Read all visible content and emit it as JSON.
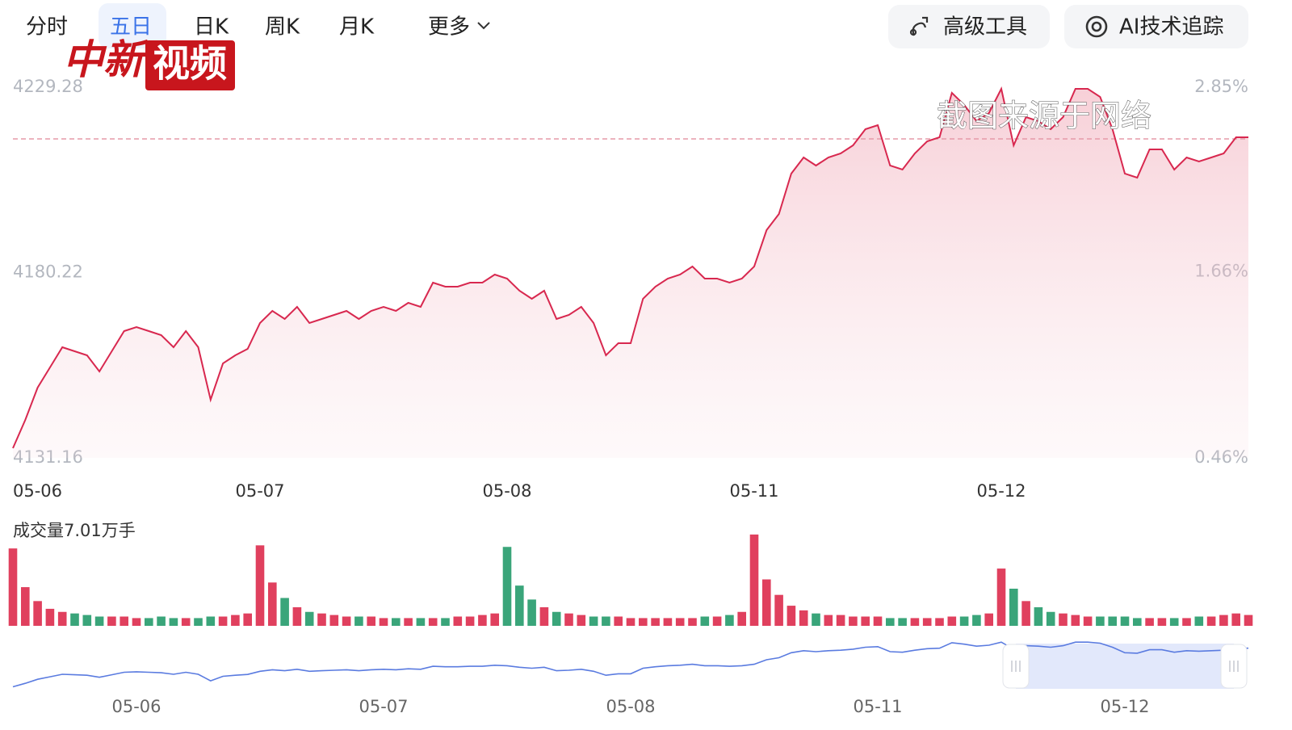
{
  "tabs": [
    "分时",
    "五日",
    "日K",
    "周K",
    "月K",
    "更多"
  ],
  "active_tab": 1,
  "buttons": [
    "高级工具",
    "AI技术追踪"
  ],
  "watermark": {
    "logo_left": "中新",
    "logo_box": "视频",
    "source_note": "截图来源于网络"
  },
  "chart_data": [
    {
      "type": "line",
      "categories": [
        "05-06",
        null,
        null,
        null,
        null,
        null,
        null,
        null,
        null,
        null,
        null,
        null,
        null,
        null,
        null,
        null,
        null,
        null,
        null,
        null,
        "05-07",
        null,
        null,
        null,
        null,
        null,
        null,
        null,
        null,
        null,
        null,
        null,
        null,
        null,
        null,
        null,
        null,
        null,
        null,
        null,
        "05-08",
        null,
        null,
        null,
        null,
        null,
        null,
        null,
        null,
        null,
        null,
        null,
        null,
        null,
        null,
        null,
        null,
        null,
        null,
        null,
        "05-11",
        null,
        null,
        null,
        null,
        null,
        null,
        null,
        null,
        null,
        null,
        null,
        null,
        null,
        null,
        null,
        null,
        null,
        null,
        null,
        "05-12",
        null,
        null,
        null,
        null,
        null,
        null,
        null,
        null,
        null,
        null,
        null,
        null,
        null,
        null,
        null,
        null,
        null,
        null,
        null,
        null
      ],
      "series": [
        {
          "name": null,
          "color": "#d8284f",
          "values": [
            4133.73,
            4141.21,
            4149.76,
            4155.1,
            4160.45,
            4159.38,
            4158.31,
            4154.03,
            4159.38,
            4164.72,
            4165.79,
            4164.72,
            4163.65,
            4160.45,
            4164.72,
            4160.45,
            4146.55,
            4156.17,
            4158.31,
            4160.02,
            4166.86,
            4170.07,
            4167.93,
            4171.13,
            4166.86,
            4167.93,
            4169.0,
            4170.07,
            4167.93,
            4170.07,
            4171.13,
            4170.07,
            4172.2,
            4171.13,
            4177.55,
            4176.48,
            4176.48,
            4177.55,
            4177.55,
            4179.69,
            4178.62,
            4175.41,
            4173.27,
            4175.41,
            4167.93,
            4169.0,
            4171.13,
            4166.86,
            4158.31,
            4161.51,
            4161.51,
            4173.27,
            4176.48,
            4178.62,
            4179.69,
            4181.82,
            4178.62,
            4178.62,
            4177.55,
            4178.62,
            4181.82,
            4191.44,
            4195.72,
            4206.41,
            4210.68,
            4208.54,
            4210.68,
            4211.75,
            4213.89,
            4218.16,
            4219.23,
            4208.54,
            4207.48,
            4211.75,
            4214.96,
            4216.03,
            4227.78,
            4224.58,
            4220.3,
            4222.44,
            4228.85,
            4213.89,
            4221.37,
            4220.3,
            4218.16,
            4221.37,
            4228.85,
            4228.85,
            4226.71,
            4218.16,
            4206.41,
            4205.34,
            4212.82,
            4212.82,
            4207.48,
            4210.68,
            4209.61,
            4210.68,
            4211.75,
            4216.03,
            4216.03
          ]
        }
      ],
      "ylim": [
        4131.16,
        4229.28
      ],
      "yticks": [
        4131.16,
        4180.22,
        4229.28
      ],
      "y2lim": [
        0.46,
        2.85
      ],
      "y2ticks": [
        {
          "value": 0.46,
          "label": "0.46%"
        },
        {
          "value": 1.66,
          "label": "1.66%"
        },
        {
          "value": 2.85,
          "label": "2.85%"
        }
      ],
      "reference_line": 4215.6,
      "area_fill": true
    },
    {
      "type": "bar",
      "title": "成交量7.01万手",
      "up_color": "#e0405e",
      "down_color": "#3aa57a",
      "ylim": [
        0,
        60
      ],
      "values": [
        50,
        25,
        16,
        11,
        9,
        8,
        7,
        6,
        6,
        6,
        5,
        5,
        6,
        5,
        5,
        5,
        6,
        6,
        7,
        8,
        52,
        28,
        18,
        12,
        9,
        8,
        7,
        6,
        6,
        6,
        5,
        5,
        5,
        5,
        5,
        5,
        6,
        6,
        7,
        8,
        51,
        26,
        17,
        12,
        9,
        8,
        7,
        6,
        6,
        6,
        5,
        5,
        5,
        5,
        5,
        5,
        6,
        6,
        7,
        9,
        59,
        30,
        20,
        13,
        10,
        8,
        7,
        7,
        6,
        6,
        6,
        5,
        5,
        5,
        5,
        5,
        6,
        6,
        7,
        8,
        37,
        24,
        16,
        12,
        9,
        8,
        7,
        6,
        6,
        6,
        6,
        5,
        5,
        5,
        5,
        5,
        6,
        6,
        7,
        8,
        7.01
      ]
    }
  ]
}
